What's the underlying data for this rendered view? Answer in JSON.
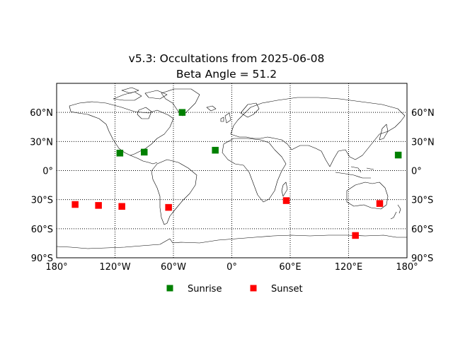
{
  "title": "v5.3: Occultations from 2025-06-08",
  "subtitle": "Beta Angle = 51.2",
  "colors": {
    "sunrise": "#008000",
    "sunset": "#ff0000",
    "grid": "#000000",
    "coast": "#000000"
  },
  "chart_data": {
    "type": "scatter",
    "projection": "equirectangular",
    "xlim": [
      -180,
      180
    ],
    "ylim": [
      -90,
      90
    ],
    "grid": true,
    "legend_placement": "bottom-center",
    "x_ticks": [
      {
        "value": -180,
        "label": "180°"
      },
      {
        "value": -120,
        "label": "120°W"
      },
      {
        "value": -60,
        "label": "60°W"
      },
      {
        "value": 0,
        "label": "0°"
      },
      {
        "value": 60,
        "label": "60°E"
      },
      {
        "value": 120,
        "label": "120°E"
      },
      {
        "value": 180,
        "label": "180°"
      }
    ],
    "y_ticks": [
      {
        "value": 60,
        "label": "60°N"
      },
      {
        "value": 30,
        "label": "30°N"
      },
      {
        "value": 0,
        "label": "0°"
      },
      {
        "value": -30,
        "label": "30°S"
      },
      {
        "value": -60,
        "label": "60°S"
      },
      {
        "value": -90,
        "label": "90°S"
      }
    ],
    "series": [
      {
        "name": "Sunrise",
        "color": "#008000",
        "points": [
          {
            "lon": -115,
            "lat": 18
          },
          {
            "lon": -90,
            "lat": 19
          },
          {
            "lon": -51,
            "lat": 60
          },
          {
            "lon": -17,
            "lat": 21
          },
          {
            "lon": 171,
            "lat": 16
          }
        ]
      },
      {
        "name": "Sunset",
        "color": "#ff0000",
        "points": [
          {
            "lon": -161,
            "lat": -35
          },
          {
            "lon": -137,
            "lat": -36
          },
          {
            "lon": -113,
            "lat": -37
          },
          {
            "lon": -65,
            "lat": -38
          },
          {
            "lon": 56,
            "lat": -31
          },
          {
            "lon": 127,
            "lat": -67
          },
          {
            "lon": 152,
            "lat": -34
          }
        ]
      }
    ]
  }
}
